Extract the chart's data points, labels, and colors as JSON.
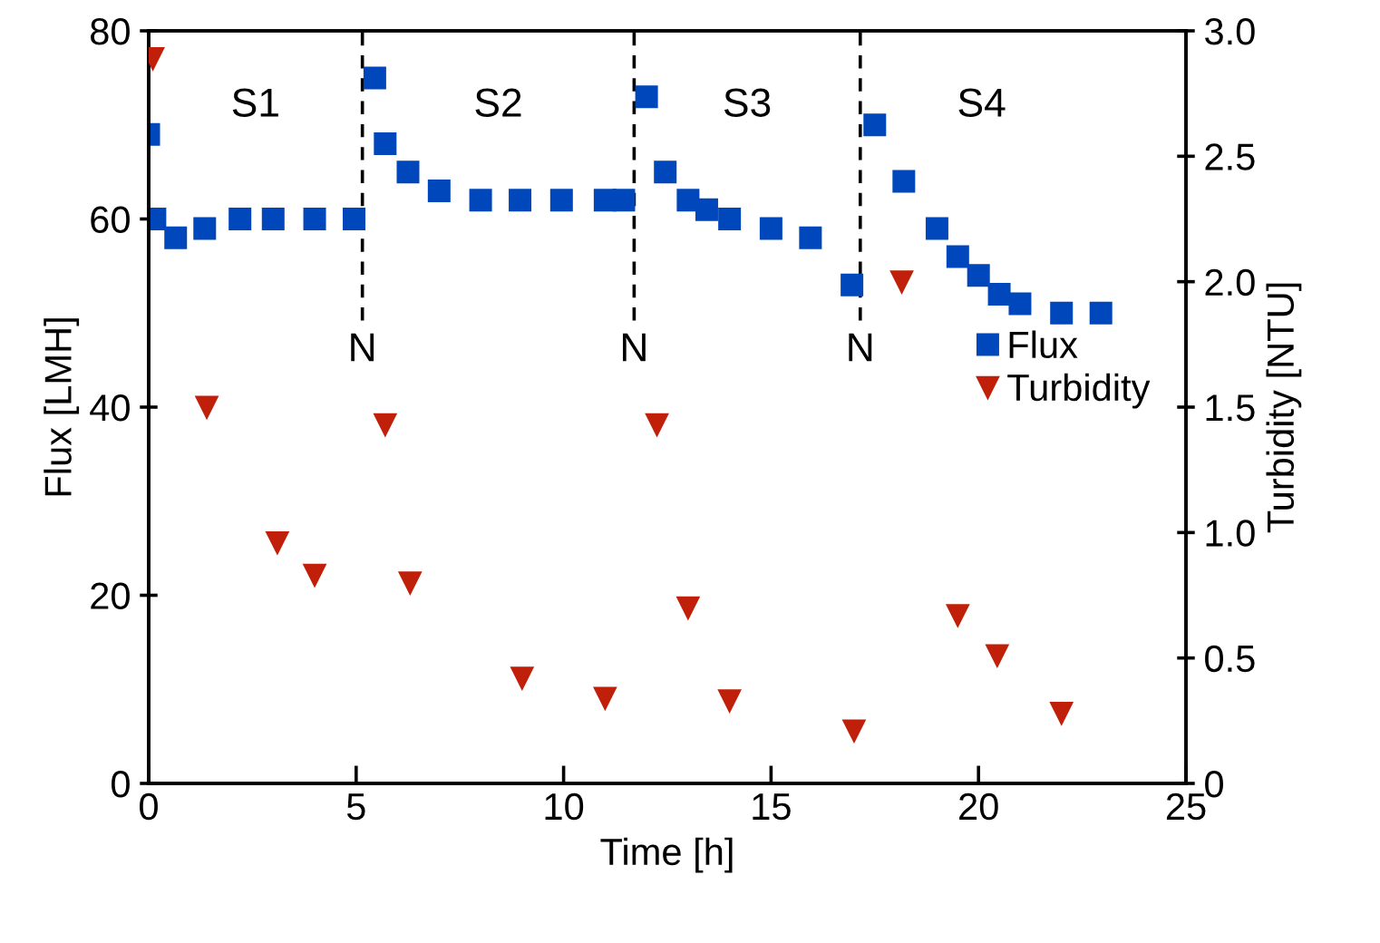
{
  "chart_data": {
    "type": "scatter",
    "xlabel": "Time [h]",
    "ylabel": "Flux [LMH]",
    "y2label": "Turbidity [NTU]",
    "xlim": [
      0,
      25
    ],
    "xticks": [
      0,
      5,
      10,
      15,
      20,
      25
    ],
    "ylim": [
      0,
      80
    ],
    "yticks": [
      0,
      20,
      40,
      60,
      80
    ],
    "y2lim": [
      0,
      3
    ],
    "y2ticks": [
      0,
      0.5,
      {
        "value": 1,
        "label": "1.0"
      },
      1.5,
      {
        "value": 2,
        "label": "2.0"
      },
      2.5,
      {
        "value": 3,
        "label": "3.0"
      }
    ],
    "series": [
      {
        "name": "Flux",
        "color": "#0047bb",
        "marker": "square",
        "x": [
          0,
          0.15,
          0.65,
          1.35,
          2.2,
          3.0,
          4.0,
          4.95,
          5.45,
          5.7,
          6.25,
          7.0,
          8.0,
          8.95,
          9.95,
          11.0,
          11.45,
          12.0,
          12.45,
          13.0,
          13.45,
          14.0,
          15.0,
          15.95,
          16.95,
          17.5,
          18.2,
          19.0,
          19.5,
          20.0,
          20.5,
          21.0,
          22.0,
          22.95
        ],
        "values": [
          69,
          60,
          58,
          59,
          60,
          60,
          60,
          60,
          75,
          68,
          65,
          63,
          62,
          62,
          62,
          62,
          62,
          73,
          65,
          62,
          61,
          60,
          59,
          58,
          53,
          70,
          64,
          59,
          56,
          54,
          52,
          51,
          50,
          50
        ]
      },
      {
        "name": "Turbidity",
        "color": "#c0200a",
        "marker": "triangle",
        "axis": "y2",
        "x": [
          0.1,
          1.4,
          3.1,
          4.0,
          5.7,
          6.3,
          9.0,
          11.0,
          12.25,
          13.0,
          14.0,
          17.0,
          18.15,
          19.5,
          20.45,
          22.0
        ],
        "values": [
          2.89,
          1.5,
          0.96,
          0.83,
          1.43,
          0.8,
          0.42,
          0.34,
          1.43,
          0.7,
          0.33,
          0.21,
          2.0,
          0.67,
          0.51,
          0.28
        ]
      }
    ],
    "ref_lines": [
      {
        "axis": "x",
        "value": 5.15,
        "label": "N",
        "line_style": "dashed",
        "color": "#000000"
      },
      {
        "axis": "x",
        "value": 11.7,
        "label": "N",
        "line_style": "dashed",
        "color": "#000000"
      },
      {
        "axis": "x",
        "value": 17.15,
        "label": "N",
        "line_style": "dashed",
        "color": "#000000"
      }
    ],
    "annotations": [
      "S1",
      "S2",
      "S3",
      "S4"
    ],
    "legend": "center right",
    "grid": false
  }
}
